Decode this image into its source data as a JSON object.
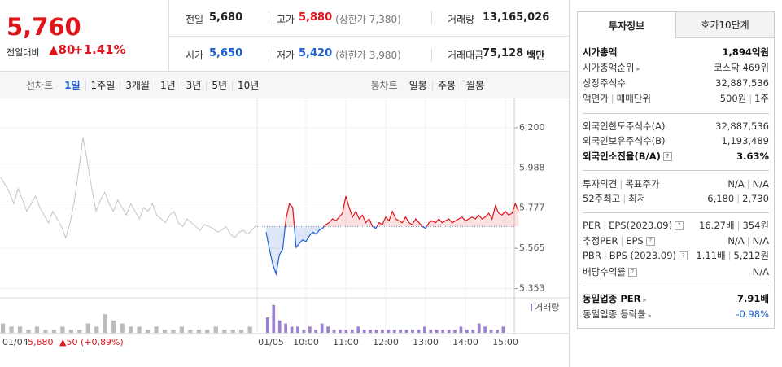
{
  "header": {
    "price": "5,760",
    "change_label": "전일대비",
    "change": "▲80",
    "rate": "+1.41%"
  },
  "stats": [
    [
      {
        "label": "전일",
        "value": "5,680"
      },
      {
        "label": "고가",
        "value": "5,880",
        "extra": "(상한가 7,380)"
      },
      {
        "label": "거래량",
        "value": "13,165,026"
      }
    ],
    [
      {
        "label": "시가",
        "value": "5,650"
      },
      {
        "label": "저가",
        "value": "5,420",
        "extra": "(하한가 3,980)"
      },
      {
        "label": "거래대금",
        "value": "75,128",
        "extra": "백만"
      }
    ]
  ],
  "tabs": {
    "line": {
      "label": "선차트",
      "items": [
        "1일",
        "1주일",
        "3개월",
        "1년",
        "3년",
        "5년",
        "10년"
      ],
      "active": 0
    },
    "candle": {
      "label": "봉차트",
      "items": [
        "일봉",
        "주봉",
        "월봉"
      ]
    }
  },
  "chart_data": {
    "type": "line",
    "ylim": [
      5300,
      6260
    ],
    "yticks": [
      {
        "value": 6200,
        "label": "6,200"
      },
      {
        "value": 5988,
        "label": "5,988"
      },
      {
        "value": 5777,
        "label": "5,777"
      },
      {
        "value": 5565,
        "label": "5,565"
      },
      {
        "value": 5353,
        "label": "5,353"
      }
    ],
    "grid": true,
    "baseline": 5680,
    "series": [
      {
        "color": "#c4c4c4",
        "values": [
          5940,
          5900,
          5860,
          5800,
          5880,
          5820,
          5760,
          5800,
          5840,
          5780,
          5740,
          5700,
          5760,
          5720,
          5680,
          5620,
          5700,
          5820,
          5980,
          6150,
          6020,
          5880,
          5760,
          5820,
          5860,
          5800,
          5760,
          5820,
          5780,
          5740,
          5800,
          5760,
          5720,
          5780,
          5760,
          5800,
          5740,
          5720,
          5700,
          5740,
          5760,
          5700,
          5680,
          5720,
          5700,
          5680,
          5660,
          5690,
          5680,
          5670,
          5650,
          5660,
          5680,
          5640,
          5620,
          5650,
          5660,
          5640,
          5660,
          5690
        ]
      },
      {
        "color": "#e0151b",
        "color_below": "#1b5fd2",
        "values": [
          5650,
          5560,
          5480,
          5430,
          5530,
          5560,
          5720,
          5800,
          5780,
          5570,
          5590,
          5610,
          5600,
          5630,
          5650,
          5640,
          5660,
          5670,
          5690,
          5700,
          5720,
          5710,
          5730,
          5750,
          5840,
          5780,
          5730,
          5760,
          5720,
          5740,
          5700,
          5720,
          5680,
          5670,
          5700,
          5690,
          5730,
          5710,
          5760,
          5720,
          5710,
          5700,
          5730,
          5700,
          5690,
          5720,
          5700,
          5680,
          5670,
          5700,
          5710,
          5700,
          5720,
          5700,
          5710,
          5720,
          5700,
          5710,
          5720,
          5730,
          5710,
          5720,
          5730,
          5720,
          5740,
          5720,
          5730,
          5750,
          5720,
          5790,
          5750,
          5740,
          5760,
          5740,
          5750,
          5800,
          5760
        ]
      }
    ],
    "volume_label": "거래량",
    "volume_lim": [
      0,
      10
    ],
    "volume": [
      {
        "color": "#bbbbbb",
        "values": [
          3,
          2,
          2,
          1,
          2,
          1,
          1,
          2,
          1,
          1,
          3,
          2,
          6,
          4,
          3,
          2,
          2,
          1,
          2,
          1,
          1,
          2,
          1,
          1,
          1,
          2,
          1,
          1,
          1,
          2
        ]
      },
      {
        "color": "#9a80cf",
        "values": [
          5,
          9,
          4,
          3,
          2,
          2,
          1,
          2,
          1,
          3,
          2,
          1,
          1,
          1,
          1,
          2,
          1,
          1,
          1,
          1,
          1,
          1,
          1,
          1,
          1,
          1,
          2,
          1,
          1,
          1,
          1,
          1,
          2,
          1,
          1,
          3,
          2,
          1,
          1,
          2
        ]
      }
    ],
    "xtick_labels": [
      "01/05",
      "10:00",
      "11:00",
      "12:00",
      "13:00",
      "14:00",
      "15:00"
    ],
    "prev": {
      "date": "01/04",
      "close": "5,680",
      "change": "▲50 (+0,89%)"
    }
  },
  "info": {
    "tabs": [
      "투자정보",
      "호가10단계"
    ],
    "sections": [
      [
        {
          "label": [
            "시가총액"
          ],
          "value": [
            "1,894억원"
          ],
          "bold": true
        },
        {
          "label": [
            "시가총액순위"
          ],
          "value": [
            "코스닥 469위"
          ],
          "arrow": true
        },
        {
          "label": [
            "상장주식수"
          ],
          "value": [
            "32,887,536"
          ]
        },
        {
          "label": [
            "액면가",
            "매매단위"
          ],
          "value": [
            "500원",
            "1주"
          ]
        }
      ],
      [
        {
          "label": [
            "외국인한도주식수(A)"
          ],
          "value": [
            "32,887,536"
          ]
        },
        {
          "label": [
            "외국인보유주식수(B)"
          ],
          "value": [
            "1,193,489"
          ]
        },
        {
          "label": [
            "외국인소진율(B/A)"
          ],
          "value": [
            "3.63%"
          ],
          "bold": true,
          "help": true
        }
      ],
      [
        {
          "label": [
            "투자의견",
            "목표주가"
          ],
          "value": [
            "N/A",
            "N/A"
          ]
        },
        {
          "label": [
            "52주최고",
            "최저"
          ],
          "value": [
            "6,180",
            "2,730"
          ]
        }
      ],
      [
        {
          "label": [
            "PER",
            "EPS(2023.09)"
          ],
          "value": [
            "16.27배",
            "354원"
          ],
          "help": true
        },
        {
          "label": [
            "추정PER",
            "EPS"
          ],
          "value": [
            "N/A",
            "N/A"
          ],
          "help": true
        },
        {
          "label": [
            "PBR",
            "BPS (2023.09)"
          ],
          "value": [
            "1.11배",
            "5,212원"
          ],
          "help": true
        },
        {
          "label": [
            "배당수익률"
          ],
          "value": [
            "N/A"
          ],
          "help": true
        }
      ],
      [
        {
          "label": [
            "동일업종 PER"
          ],
          "value": [
            "7.91배"
          ],
          "bold": true,
          "arrow": true
        },
        {
          "label": [
            "동일업종 등락률"
          ],
          "value": [
            "-0.98%"
          ],
          "arrow": true,
          "blue": true
        }
      ]
    ]
  }
}
